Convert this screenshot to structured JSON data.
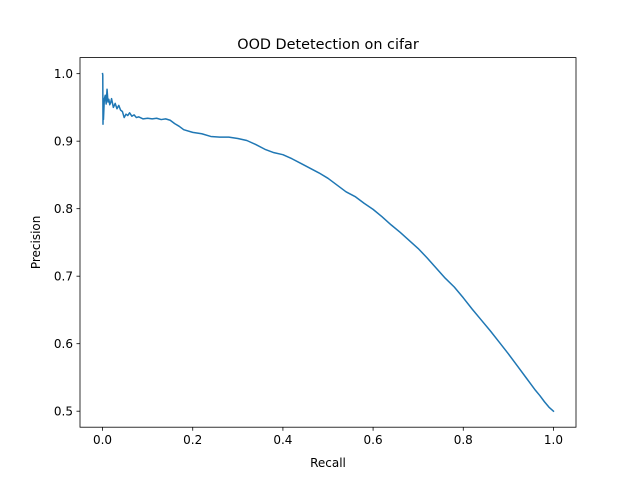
{
  "chart_data": {
    "type": "line",
    "title": "OOD Detetection on cifar",
    "xlabel": "Recall",
    "ylabel": "Precision",
    "xlim": [
      -0.05,
      1.05
    ],
    "ylim": [
      0.4763,
      1.0238
    ],
    "xticks": [
      0.0,
      0.2,
      0.4,
      0.6,
      0.8,
      1.0
    ],
    "yticks": [
      0.5,
      0.6,
      0.7,
      0.8,
      0.9,
      1.0
    ],
    "xtick_labels": [
      "0.0",
      "0.2",
      "0.4",
      "0.6",
      "0.8",
      "1.0"
    ],
    "ytick_labels": [
      "0.5",
      "0.6",
      "0.7",
      "0.8",
      "0.9",
      "1.0"
    ],
    "grid": false,
    "legend": "none",
    "series": [
      {
        "color": "#1f77b4",
        "x": [
          0.0,
          0.0005,
          0.001,
          0.0015,
          0.002,
          0.004,
          0.006,
          0.008,
          0.01,
          0.012,
          0.014,
          0.016,
          0.018,
          0.02,
          0.024,
          0.028,
          0.032,
          0.036,
          0.04,
          0.044,
          0.048,
          0.052,
          0.056,
          0.06,
          0.065,
          0.07,
          0.075,
          0.08,
          0.09,
          0.1,
          0.11,
          0.12,
          0.13,
          0.14,
          0.15,
          0.16,
          0.17,
          0.18,
          0.2,
          0.22,
          0.24,
          0.26,
          0.28,
          0.3,
          0.32,
          0.34,
          0.36,
          0.38,
          0.4,
          0.42,
          0.44,
          0.46,
          0.48,
          0.5,
          0.52,
          0.54,
          0.56,
          0.58,
          0.6,
          0.62,
          0.64,
          0.66,
          0.68,
          0.7,
          0.72,
          0.74,
          0.76,
          0.78,
          0.8,
          0.82,
          0.84,
          0.86,
          0.88,
          0.9,
          0.92,
          0.94,
          0.96,
          0.97,
          0.98,
          0.99,
          1.0
        ],
        "y": [
          1.0,
          0.998,
          0.925,
          0.96,
          0.932,
          0.963,
          0.968,
          0.955,
          0.977,
          0.958,
          0.962,
          0.954,
          0.957,
          0.963,
          0.95,
          0.956,
          0.948,
          0.953,
          0.946,
          0.944,
          0.935,
          0.94,
          0.938,
          0.942,
          0.937,
          0.939,
          0.935,
          0.936,
          0.933,
          0.934,
          0.933,
          0.934,
          0.932,
          0.933,
          0.931,
          0.926,
          0.922,
          0.917,
          0.913,
          0.911,
          0.907,
          0.906,
          0.906,
          0.904,
          0.901,
          0.895,
          0.888,
          0.883,
          0.88,
          0.874,
          0.867,
          0.86,
          0.853,
          0.845,
          0.835,
          0.825,
          0.818,
          0.808,
          0.799,
          0.788,
          0.776,
          0.765,
          0.753,
          0.741,
          0.727,
          0.712,
          0.697,
          0.684,
          0.668,
          0.651,
          0.635,
          0.619,
          0.602,
          0.585,
          0.567,
          0.549,
          0.531,
          0.523,
          0.514,
          0.506,
          0.5
        ]
      }
    ]
  }
}
